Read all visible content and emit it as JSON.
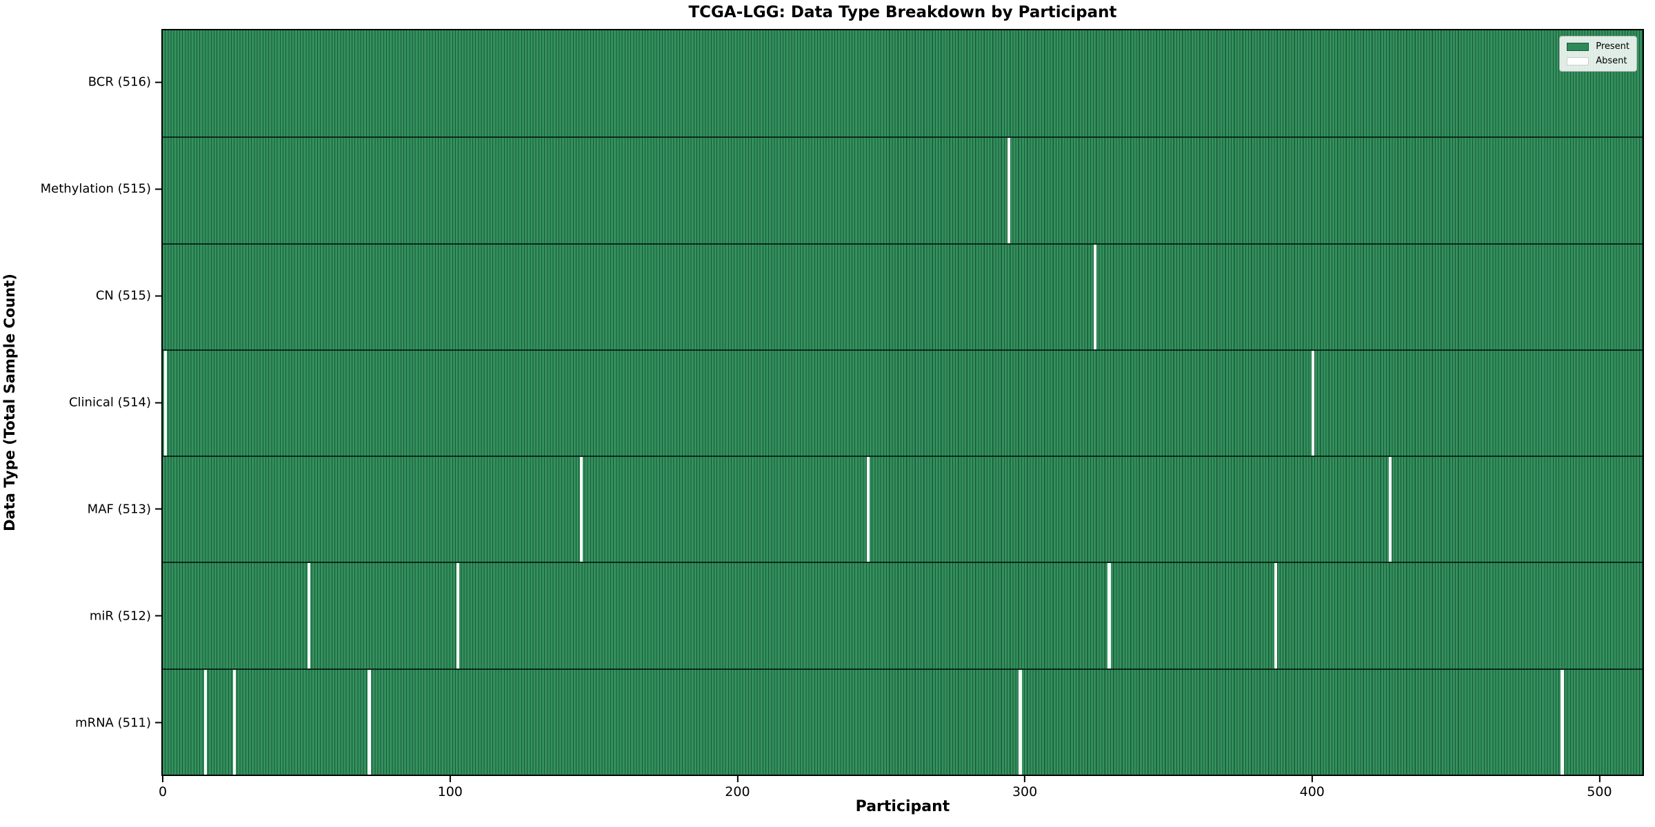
{
  "figure": {
    "title": "TCGA-LGG: Data Type Breakdown by Participant",
    "xlabel": "Participant",
    "ylabel": "Data Type (Total Sample Count)"
  },
  "legend": {
    "position": "upper right",
    "items": [
      {
        "label": "Present",
        "color": "#2e8b57",
        "edge_color": "#1b5737"
      },
      {
        "label": "Absent",
        "color": "#ffffff",
        "edge_color": "#cccccc"
      }
    ]
  },
  "chart_data": {
    "type": "heatmap",
    "title": "TCGA-LGG: Data Type Breakdown by Participant",
    "xlabel": "Participant",
    "ylabel": "Data Type (Total Sample Count)",
    "x_ticks": [
      0,
      100,
      200,
      300,
      400,
      500
    ],
    "xlim": [
      -0.5,
      515.5
    ],
    "n_participants": 516,
    "present_color": "#2e8b57",
    "absent_color": "#ffffff",
    "grid": false,
    "legend_position": "upper right",
    "rows": [
      {
        "label": "BCR (516)",
        "data_type": "BCR",
        "total": 516,
        "absent_participants": []
      },
      {
        "label": "Methylation (515)",
        "data_type": "Methylation",
        "total": 515,
        "absent_participants": [
          294
        ]
      },
      {
        "label": "CN (515)",
        "data_type": "CN",
        "total": 515,
        "absent_participants": [
          324
        ]
      },
      {
        "label": "Clinical (514)",
        "data_type": "Clinical",
        "total": 514,
        "absent_participants": [
          0,
          400
        ]
      },
      {
        "label": "MAF (513)",
        "data_type": "MAF",
        "total": 513,
        "absent_participants": [
          145,
          245,
          427
        ]
      },
      {
        "label": "miR (512)",
        "data_type": "miR",
        "total": 512,
        "absent_participants": [
          50,
          102,
          329,
          387
        ]
      },
      {
        "label": "mRNA (511)",
        "data_type": "mRNA",
        "total": 511,
        "absent_participants": [
          14,
          24,
          71,
          298,
          487
        ]
      }
    ]
  }
}
